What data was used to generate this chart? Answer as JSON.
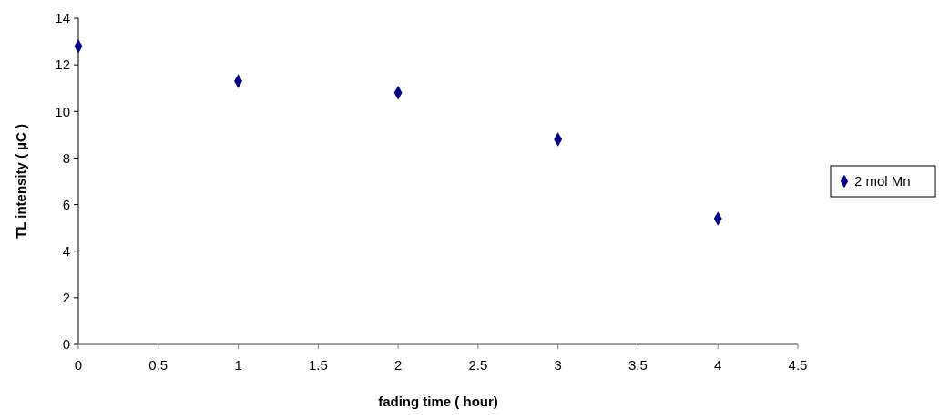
{
  "chart_data": {
    "type": "scatter",
    "xlabel": "fading time ( hour)",
    "ylabel": "TL intensity ( µC )",
    "x": [
      0,
      1,
      2,
      3,
      4
    ],
    "series": [
      {
        "name": "2 mol Mn",
        "color": "#000080",
        "values": [
          12.8,
          11.3,
          10.8,
          8.8,
          5.4
        ]
      }
    ],
    "xlim": [
      0,
      4.5
    ],
    "xticks": [
      0,
      0.5,
      1,
      1.5,
      2,
      2.5,
      3,
      3.5,
      4,
      4.5
    ],
    "ylim": [
      0,
      14
    ],
    "yticks": [
      0,
      2,
      4,
      6,
      8,
      10,
      12,
      14
    ],
    "marker": "diamond",
    "legend": "right",
    "grid": false
  }
}
